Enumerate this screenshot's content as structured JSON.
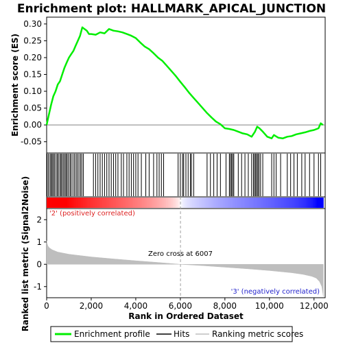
{
  "title": "Enrichment plot: HALLMARK_APICAL_JUNCTION",
  "colors": {
    "profile": "#00ee00",
    "hits": "#000000",
    "metric_fill": "#bebebe",
    "positive_label": "#d22222",
    "negative_label": "#2222cc",
    "zero_line": "#a0a0a0"
  },
  "chart_data": [
    {
      "type": "line",
      "name": "enrichment-profile",
      "ylabel": "Enrichment score (ES)",
      "ylim": [
        -0.065,
        0.31
      ],
      "yticks": [
        0.3,
        0.25,
        0.2,
        0.15,
        0.1,
        0.05,
        0.0,
        -0.05
      ],
      "ytick_labels": [
        "0.30",
        "0.25",
        "0.20",
        "0.15",
        "0.10",
        "0.05",
        "0.00",
        "-0.05"
      ],
      "x": [
        0,
        100,
        200,
        300,
        400,
        500,
        600,
        700,
        800,
        900,
        1000,
        1100,
        1200,
        1300,
        1400,
        1500,
        1600,
        1700,
        1800,
        1900,
        2000,
        2200,
        2400,
        2600,
        2800,
        3000,
        3200,
        3400,
        3600,
        3800,
        4000,
        4200,
        4400,
        4600,
        4800,
        5000,
        5200,
        5400,
        5600,
        5800,
        6000,
        6200,
        6400,
        6600,
        6800,
        7000,
        7200,
        7400,
        7600,
        7800,
        8000,
        8200,
        8400,
        8600,
        8800,
        9000,
        9200,
        9350,
        9450,
        9550,
        9700,
        9900,
        10100,
        10200,
        10400,
        10600,
        10800,
        11000,
        11200,
        11400,
        11600,
        11800,
        12000,
        12200,
        12300,
        12400
      ],
      "values": [
        0.0,
        0.03,
        0.06,
        0.085,
        0.1,
        0.12,
        0.13,
        0.15,
        0.17,
        0.185,
        0.2,
        0.21,
        0.22,
        0.235,
        0.25,
        0.265,
        0.29,
        0.285,
        0.28,
        0.27,
        0.27,
        0.268,
        0.275,
        0.272,
        0.285,
        0.28,
        0.278,
        0.275,
        0.27,
        0.265,
        0.258,
        0.245,
        0.233,
        0.225,
        0.213,
        0.2,
        0.19,
        0.175,
        0.16,
        0.145,
        0.128,
        0.112,
        0.095,
        0.08,
        0.065,
        0.05,
        0.035,
        0.022,
        0.01,
        0.002,
        -0.01,
        -0.012,
        -0.015,
        -0.02,
        -0.025,
        -0.028,
        -0.035,
        -0.02,
        -0.005,
        -0.01,
        -0.02,
        -0.035,
        -0.04,
        -0.03,
        -0.038,
        -0.04,
        -0.035,
        -0.033,
        -0.028,
        -0.025,
        -0.022,
        -0.018,
        -0.015,
        -0.01,
        0.005,
        0.0
      ]
    },
    {
      "type": "scatter",
      "name": "hits",
      "x": [
        20,
        80,
        150,
        200,
        250,
        300,
        350,
        420,
        480,
        530,
        600,
        650,
        700,
        760,
        820,
        870,
        920,
        980,
        1050,
        1100,
        1180,
        1250,
        1320,
        1380,
        1450,
        1520,
        1580,
        1650,
        2100,
        2200,
        2300,
        2400,
        2500,
        2600,
        2700,
        2800,
        2900,
        3000,
        3100,
        3200,
        3350,
        3450,
        3600,
        3700,
        3800,
        3900,
        4000,
        4100,
        4250,
        4450,
        4600,
        4800,
        4950,
        5050,
        5150,
        5250,
        5900,
        6000,
        6100,
        6150,
        6250,
        6350,
        6450,
        6500,
        6600,
        7200,
        7350,
        7500,
        7650,
        7800,
        8050,
        8200,
        8250,
        8300,
        8350,
        8400,
        8600,
        8750,
        8900,
        9050,
        9200,
        9280,
        9330,
        9380,
        9430,
        9480,
        9530,
        9600,
        9700,
        10100,
        10200,
        10300,
        10500,
        10800,
        10950,
        11100,
        11250,
        11450,
        11600,
        11800,
        12000,
        12200,
        12300
      ]
    },
    {
      "type": "area",
      "name": "ranked-list-metric",
      "xlabel": "Rank in Ordered Dataset",
      "ylabel": "Ranked list metric (Signal2Noise)",
      "xlim": [
        0,
        12500
      ],
      "ylim": [
        -1.5,
        2.5
      ],
      "xticks": [
        0,
        2000,
        4000,
        6000,
        8000,
        10000,
        12000
      ],
      "xtick_labels": [
        "0",
        "2,000",
        "4,000",
        "6,000",
        "8,000",
        "10,000",
        "12,000"
      ],
      "yticks": [
        2,
        1,
        0,
        -1
      ],
      "ytick_labels": [
        "2",
        "1",
        "0",
        "-1"
      ],
      "x": [
        0,
        20,
        60,
        120,
        250,
        500,
        1000,
        2000,
        3000,
        4000,
        5000,
        6007,
        7000,
        8000,
        9000,
        10000,
        11000,
        11500,
        11900,
        12100,
        12250,
        12350,
        12420
      ],
      "values": [
        1.05,
        0.95,
        0.82,
        0.74,
        0.65,
        0.55,
        0.45,
        0.33,
        0.24,
        0.16,
        0.08,
        0.0,
        -0.06,
        -0.13,
        -0.2,
        -0.28,
        -0.38,
        -0.45,
        -0.54,
        -0.62,
        -0.78,
        -1.0,
        -1.45
      ]
    }
  ],
  "heatmap_bar": {
    "positive_color": "#ff0000",
    "negative_color": "#0000ff",
    "neutral_color": "#ffffff"
  },
  "annotations": {
    "positive_label": "'2' (positively correlated)",
    "negative_label": "'3' (negatively correlated)",
    "zero_cross": "Zero cross at 6007",
    "zero_cross_rank": 6007
  },
  "legend": {
    "profile": "Enrichment profile",
    "hits": "Hits",
    "metric": "Ranking metric scores"
  }
}
